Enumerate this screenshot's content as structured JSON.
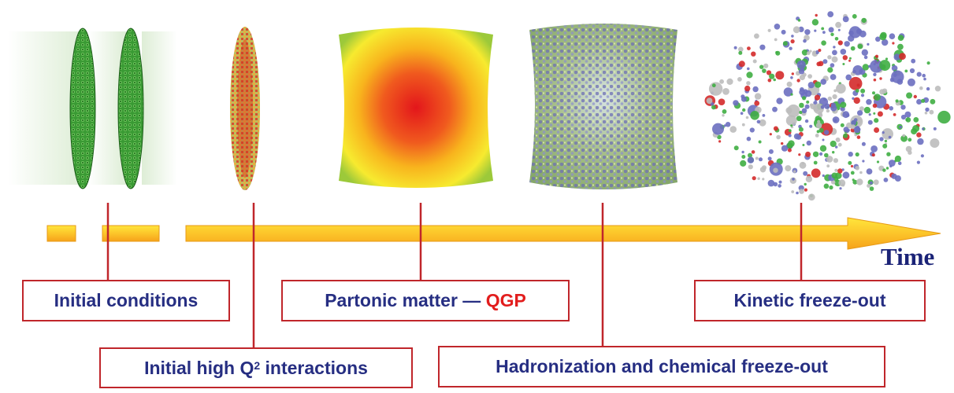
{
  "axis": {
    "label": "Time"
  },
  "stages": [
    {
      "id": "initial-conditions",
      "text": "Initial conditions"
    },
    {
      "id": "initial-high-q2",
      "text": "Initial high Q",
      "sup": "2",
      "text_after": " interactions"
    },
    {
      "id": "partonic-matter",
      "text": "Partonic matter — ",
      "highlight": "QGP"
    },
    {
      "id": "hadronization",
      "text": "Hadronization and chemical freeze-out"
    },
    {
      "id": "kinetic-freeze-out",
      "text": "Kinetic freeze-out"
    }
  ],
  "colors": {
    "label_text": "#262e82",
    "label_border": "#c0262b",
    "qgp": "#e21d1d",
    "arrow_top": "#ffe63c",
    "arrow_bottom": "#f6a21a",
    "connector": "#c0262b",
    "time": "#1b2377"
  },
  "icons": [
    "nucleus-green-icon",
    "nucleus-collision-icon",
    "fireball-icon",
    "hadron-gas-icon",
    "particle-cloud-icon",
    "arrow-right-icon"
  ]
}
